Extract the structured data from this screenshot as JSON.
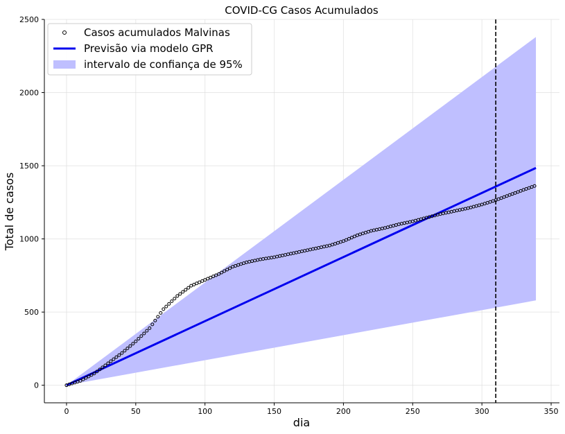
{
  "chart_data": {
    "type": "line",
    "title": "COVID-CG Casos Acumulados",
    "xlabel": "dia",
    "ylabel": "Total de casos",
    "xlim": [
      -16,
      356
    ],
    "ylim": [
      -120,
      2500
    ],
    "xticks": [
      0,
      50,
      100,
      150,
      200,
      250,
      300,
      350
    ],
    "yticks": [
      0,
      500,
      1000,
      1500,
      2000,
      2500
    ],
    "grid": true,
    "legend_position": "top-left",
    "vline_x": 310,
    "series": [
      {
        "name": "Casos acumulados Malvinas",
        "kind": "scatter",
        "color": "#000000",
        "x": [
          0,
          10,
          20,
          30,
          40,
          50,
          60,
          70,
          80,
          90,
          100,
          110,
          120,
          130,
          140,
          150,
          160,
          170,
          180,
          190,
          200,
          210,
          220,
          230,
          240,
          250,
          260,
          270,
          280,
          290,
          300,
          310,
          320,
          330,
          339
        ],
        "y": [
          0,
          30,
          80,
          150,
          220,
          300,
          390,
          520,
          610,
          680,
          720,
          760,
          810,
          840,
          860,
          875,
          895,
          915,
          935,
          955,
          985,
          1025,
          1055,
          1075,
          1100,
          1120,
          1145,
          1170,
          1190,
          1210,
          1235,
          1265,
          1300,
          1335,
          1365
        ]
      },
      {
        "name": "Previsão via modelo GPR",
        "kind": "line",
        "color": "#0000ee",
        "x": [
          0,
          339
        ],
        "y": [
          0,
          1485
        ]
      },
      {
        "name": "intervalo de confiança de 95%",
        "kind": "band",
        "color": "#bfbfff",
        "x": [
          0,
          339
        ],
        "lower": [
          0,
          580
        ],
        "upper": [
          0,
          2380
        ]
      }
    ]
  }
}
